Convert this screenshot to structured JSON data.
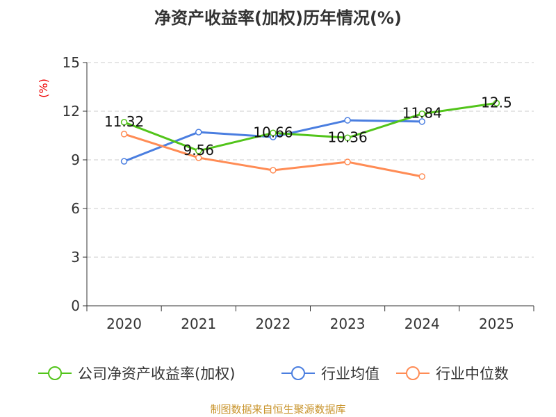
{
  "chart_data": {
    "type": "line",
    "title": "净资产收益率(加权)历年情况(%)",
    "ylabel": "(%)",
    "categories": [
      "2020",
      "2021",
      "2022",
      "2023",
      "2024",
      "2025"
    ],
    "ylim": [
      0,
      15
    ],
    "yticks": [
      0,
      3,
      6,
      9,
      12,
      15
    ],
    "grid": true,
    "legend_position": "bottom",
    "series": [
      {
        "name": "公司净资产收益率(加权)",
        "color": "#52c41a",
        "values": [
          11.32,
          9.56,
          10.66,
          10.36,
          11.84,
          12.5
        ],
        "labels": [
          "11.32",
          "9.56",
          "10.66",
          "10.36",
          "11.84",
          "12.5"
        ]
      },
      {
        "name": "行业均值",
        "color": "#4a7ee0",
        "values": [
          8.91,
          10.71,
          10.41,
          11.44,
          11.36,
          null
        ]
      },
      {
        "name": "行业中位数",
        "color": "#ff8c55",
        "values": [
          10.59,
          9.13,
          8.36,
          8.87,
          7.97,
          null
        ]
      }
    ]
  },
  "source": "制图数据来自恒生聚源数据库"
}
